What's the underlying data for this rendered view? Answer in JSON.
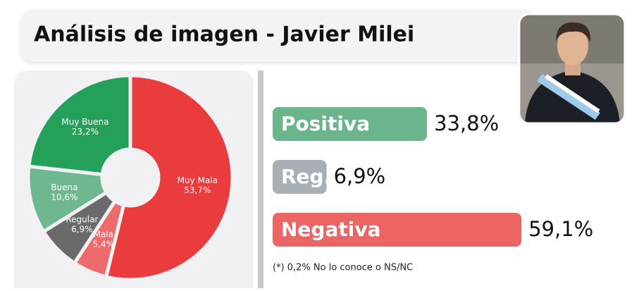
{
  "title": "Análisis de imagen - Javier Milei",
  "note": "(*) 0,2% No lo conoce o NS/NC",
  "chart_data": [
    {
      "type": "pie",
      "categories": [
        "Muy Mala",
        "Mala",
        "Regular",
        "Buena",
        "Muy Buena"
      ],
      "values": [
        53.7,
        5.4,
        6.9,
        10.6,
        23.2
      ],
      "value_labels": [
        "53,7%",
        "5,4%",
        "6,9%",
        "10,6%",
        "23,2%"
      ],
      "colors": [
        "#ea3c3c",
        "#ee6b6b",
        "#6a6a6a",
        "#6fb78f",
        "#24a05b"
      ]
    },
    {
      "type": "bar",
      "categories": [
        "Positiva",
        "Reg.",
        "Negativa"
      ],
      "values": [
        33.8,
        6.9,
        59.1
      ],
      "value_labels": [
        "33,8%",
        "6,9%",
        "59,1%"
      ],
      "colors": [
        "#6bb58c",
        "#a9b0b5",
        "#ec6464"
      ]
    }
  ]
}
